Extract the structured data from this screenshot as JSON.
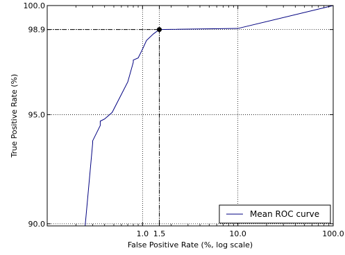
{
  "chart_data": {
    "type": "line",
    "xlabel": "False Positive Rate (%, log scale)",
    "ylabel": "True Positive Rate (%)",
    "xscale": "log",
    "xlim": [
      0.1,
      100.0
    ],
    "ylim": [
      89.9,
      100.0
    ],
    "xticks": [
      {
        "value": 1.0,
        "label": "1.0"
      },
      {
        "value": 1.5,
        "label": "1.5"
      },
      {
        "value": 10.0,
        "label": "10.0"
      },
      {
        "value": 100.0,
        "label": "100.0"
      }
    ],
    "yticks": [
      {
        "value": 90.0,
        "label": "90.0"
      },
      {
        "value": 95.0,
        "label": "95.0"
      },
      {
        "value": 98.9,
        "label": "98.9"
      },
      {
        "value": 100.0,
        "label": "100.0"
      }
    ],
    "grid": true,
    "grid_style": "dotted",
    "legend": {
      "position": "lower-right",
      "entries": [
        "Mean ROC curve"
      ]
    },
    "series": [
      {
        "name": "Mean ROC curve",
        "color": "#000080",
        "x": [
          0.25,
          0.27,
          0.3,
          0.3,
          0.36,
          0.36,
          0.4,
          0.4,
          0.48,
          0.7,
          0.8,
          0.8,
          0.9,
          1.0,
          1.1,
          1.3,
          1.5,
          10.0,
          100.0
        ],
        "y": [
          89.9,
          91.5,
          93.7,
          93.8,
          94.5,
          94.7,
          94.8,
          94.8,
          95.1,
          96.5,
          97.4,
          97.5,
          97.6,
          98.0,
          98.4,
          98.7,
          98.9,
          98.95,
          100.0
        ]
      }
    ],
    "operating_point": {
      "x": 1.5,
      "y": 98.9,
      "color": "#000000",
      "guide_style": "dash-dot"
    }
  }
}
